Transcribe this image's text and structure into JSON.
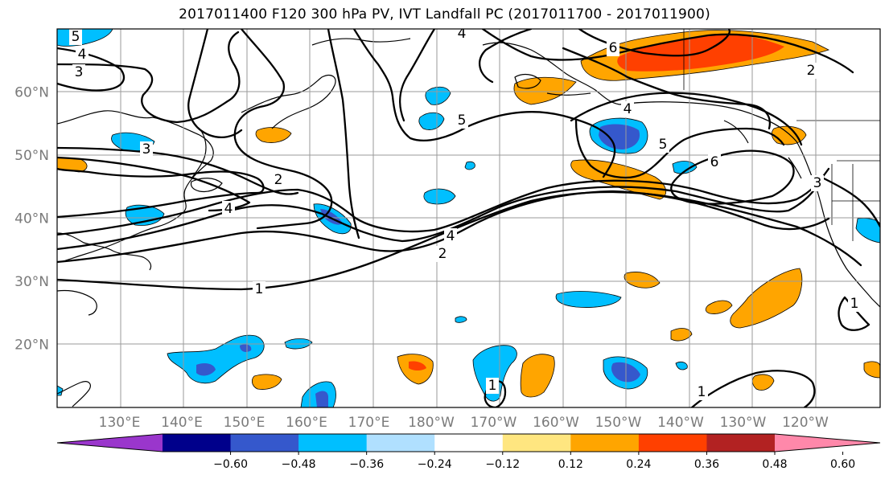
{
  "title": "2017011400 F120 300 hPa PV, IVT Landfall PC (2017011700 - 2017011900)",
  "map": {
    "lon_range": [
      120,
      -108
    ],
    "lat_range": [
      10,
      70
    ],
    "lat_ticks": [
      {
        "lat": 20,
        "label": "20°N"
      },
      {
        "lat": 30,
        "label": "30°N"
      },
      {
        "lat": 40,
        "label": "40°N"
      },
      {
        "lat": 50,
        "label": "50°N"
      },
      {
        "lat": 60,
        "label": "60°N"
      }
    ],
    "lon_ticks": [
      {
        "lon": 130,
        "label": "130°E"
      },
      {
        "lon": 140,
        "label": "140°E"
      },
      {
        "lon": 150,
        "label": "150°E"
      },
      {
        "lon": 160,
        "label": "160°E"
      },
      {
        "lon": 170,
        "label": "170°E"
      },
      {
        "lon": 180,
        "label": "180°W"
      },
      {
        "lon": 190,
        "label": "170°W"
      },
      {
        "lon": 200,
        "label": "160°W"
      },
      {
        "lon": 210,
        "label": "150°W"
      },
      {
        "lon": 220,
        "label": "140°W"
      },
      {
        "lon": 230,
        "label": "130°W"
      },
      {
        "lon": 240,
        "label": "120°W"
      }
    ],
    "contour_labels": [
      "1",
      "2",
      "3",
      "4",
      "5",
      "6"
    ]
  },
  "colorbar": {
    "colors": [
      "#9a36cc",
      "#00008b",
      "#3558cc",
      "#00bfff",
      "#b0e0ff",
      "#ffffff",
      "#ffe680",
      "#ffa500",
      "#ff4000",
      "#b22222",
      "#ff88aa"
    ],
    "tick_labels": [
      "−0.60",
      "−0.48",
      "−0.36",
      "−0.24",
      "−0.12",
      "0.12",
      "0.24",
      "0.36",
      "0.48",
      "0.60"
    ]
  }
}
